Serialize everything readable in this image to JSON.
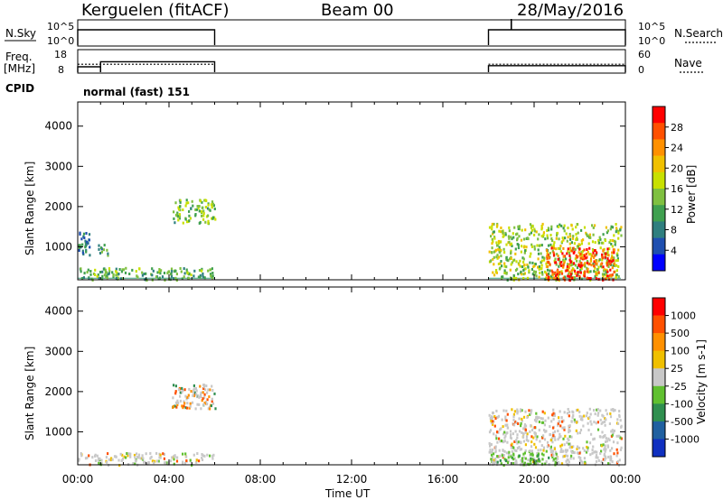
{
  "header": {
    "station": "Kerguelen (fitACF)",
    "beam": "Beam 00",
    "date": "28/May/2016"
  },
  "noise_panel": {
    "left_label": "N.Sky",
    "right_label": "N.Search",
    "y_ticks_left": [
      "10^5",
      "10^0"
    ],
    "y_ticks_right": [
      "10^5",
      "10^0"
    ],
    "active_intervals_hours": [
      [
        0.0,
        6.0
      ],
      [
        18.0,
        24.0
      ]
    ],
    "spike_hour": 19.0
  },
  "freq_panel": {
    "left_label_line1": "Freq.",
    "left_label_line2": "[MHz]",
    "right_label": "Nave",
    "y_ticks_left": [
      "18",
      "8"
    ],
    "y_ticks_right": [
      "60",
      "0"
    ],
    "freq_steps": [
      {
        "from": 0.0,
        "to": 1.0,
        "value": 10.5
      },
      {
        "from": 1.0,
        "to": 6.0,
        "value": 12.8
      },
      {
        "from": 18.0,
        "to": 24.0,
        "value": 11.0
      }
    ],
    "nave_value": 22
  },
  "cpid": {
    "label": "CPID",
    "text": "normal (fast) 151"
  },
  "chart_data": [
    {
      "type": "heatmap",
      "title": "Power",
      "xlabel": "Time UT",
      "ylabel": "Slant Range [km]",
      "colorbar_label": "Power [dB]",
      "x_ticks": [
        "00:00",
        "04:00",
        "08:00",
        "12:00",
        "16:00",
        "20:00",
        "00:00"
      ],
      "xlim": [
        0,
        24
      ],
      "ylim": [
        180,
        4600
      ],
      "y_ticks": [
        1000,
        2000,
        3000,
        4000
      ],
      "colorbar_ticks": [
        "28",
        "24",
        "20",
        "16",
        "12",
        "8",
        "4"
      ],
      "colorbar_range": [
        0,
        32
      ],
      "colorbar_colors": [
        "#0000ff",
        "#1f4fb0",
        "#2f7f7f",
        "#3fa04f",
        "#7fc040",
        "#c8e000",
        "#f0c000",
        "#ff9000",
        "#ff5000",
        "#ff0000"
      ],
      "regions": [
        {
          "t0": 0.0,
          "t1": 6.0,
          "r0": 200,
          "r1": 500,
          "value": 12
        },
        {
          "t0": 0.0,
          "t1": 0.5,
          "r0": 800,
          "r1": 1400,
          "value": 8
        },
        {
          "t0": 0.8,
          "t1": 1.3,
          "r0": 800,
          "r1": 1100,
          "value": 10
        },
        {
          "t0": 4.1,
          "t1": 6.0,
          "r0": 1600,
          "r1": 2200,
          "value": 14
        },
        {
          "t0": 18.0,
          "t1": 23.8,
          "r0": 200,
          "r1": 1600,
          "value": 16
        },
        {
          "t0": 20.5,
          "t1": 23.5,
          "r0": 200,
          "r1": 1000,
          "value": 28
        }
      ]
    },
    {
      "type": "heatmap",
      "title": "Velocity",
      "xlabel": "Time UT",
      "ylabel": "Slant Range [km]",
      "colorbar_label": "Velocity [m s-1]",
      "x_ticks": [
        "00:00",
        "04:00",
        "08:00",
        "12:00",
        "16:00",
        "20:00",
        "00:00"
      ],
      "xlim": [
        0,
        24
      ],
      "ylim": [
        180,
        4600
      ],
      "y_ticks": [
        1000,
        2000,
        3000,
        4000
      ],
      "colorbar_ticks": [
        "1000",
        "500",
        "100",
        "25",
        "-25",
        "-100",
        "-500",
        "-1000"
      ],
      "colorbar_colors": [
        "#1030c0",
        "#2060a0",
        "#2f8f4f",
        "#60c030",
        "#c8c8c8",
        "#f0c000",
        "#ff9000",
        "#ff5000",
        "#ff0000"
      ],
      "regions": [
        {
          "t0": 0.0,
          "t1": 6.0,
          "r0": 200,
          "r1": 500,
          "value": 0
        },
        {
          "t0": 4.1,
          "t1": 6.0,
          "r0": 1600,
          "r1": 2200,
          "value": -100
        },
        {
          "t0": 18.0,
          "t1": 23.8,
          "r0": 200,
          "r1": 1600,
          "value": 0
        },
        {
          "t0": 18.0,
          "t1": 21.0,
          "r0": 200,
          "r1": 500,
          "value": 100
        }
      ]
    }
  ]
}
